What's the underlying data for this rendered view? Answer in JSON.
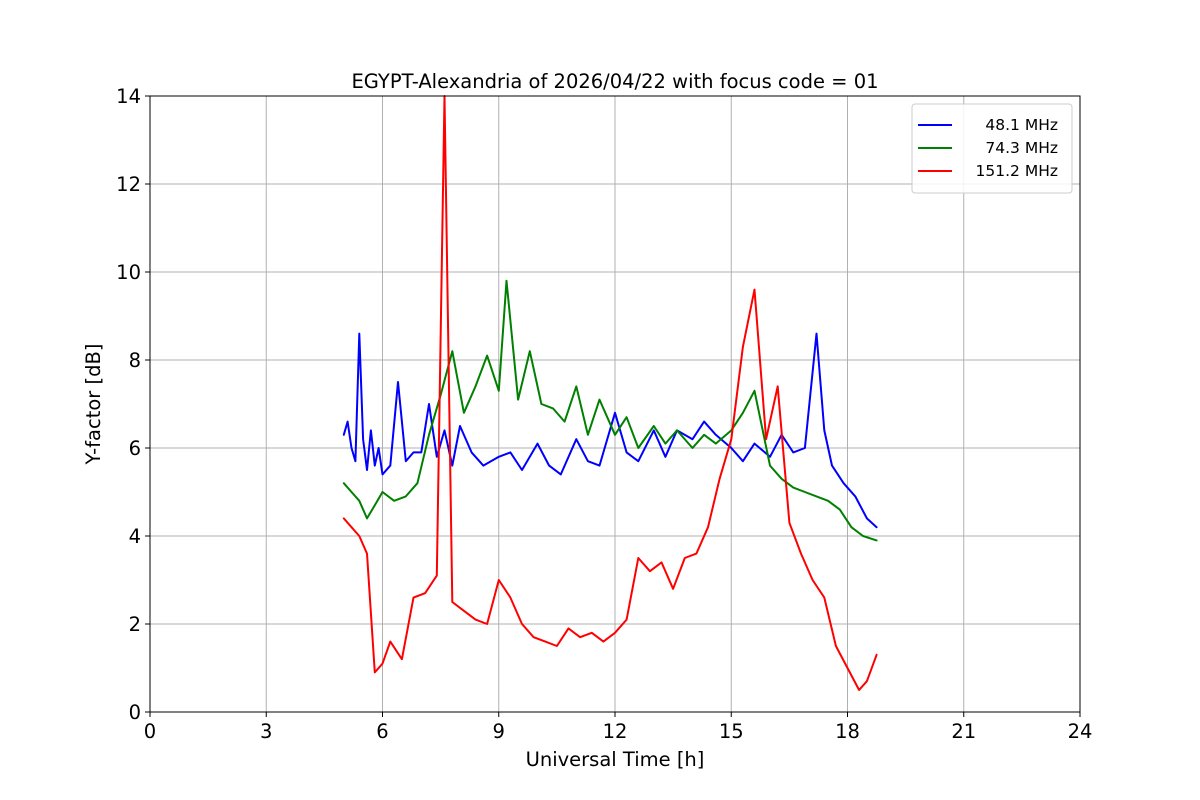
{
  "chart_data": {
    "type": "line",
    "title": "EGYPT-Alexandria of 2026/04/22 with focus code = 01",
    "xlabel": "Universal Time [h]",
    "ylabel": "Y-factor [dB]",
    "xlim": [
      0,
      24
    ],
    "ylim": [
      0,
      14
    ],
    "xticks": [
      0,
      3,
      6,
      9,
      12,
      15,
      18,
      21,
      24
    ],
    "yticks": [
      0,
      2,
      4,
      6,
      8,
      10,
      12,
      14
    ],
    "grid": true,
    "legend_position": "top-right",
    "series": [
      {
        "name": "48.1 MHz",
        "color": "#0000ff",
        "x": [
          5.0,
          5.1,
          5.2,
          5.3,
          5.4,
          5.5,
          5.6,
          5.7,
          5.8,
          5.9,
          6.0,
          6.2,
          6.4,
          6.6,
          6.8,
          7.0,
          7.2,
          7.4,
          7.6,
          7.8,
          8.0,
          8.3,
          8.6,
          9.0,
          9.3,
          9.6,
          10.0,
          10.3,
          10.6,
          11.0,
          11.3,
          11.6,
          12.0,
          12.3,
          12.6,
          13.0,
          13.3,
          13.6,
          14.0,
          14.3,
          14.6,
          15.0,
          15.3,
          15.6,
          16.0,
          16.3,
          16.6,
          16.9,
          17.2,
          17.4,
          17.6,
          17.9,
          18.2,
          18.5,
          18.75
        ],
        "values": [
          6.3,
          6.6,
          6.0,
          5.7,
          8.6,
          6.2,
          5.5,
          6.4,
          5.6,
          6.0,
          5.4,
          5.6,
          7.5,
          5.7,
          5.9,
          5.9,
          7.0,
          5.8,
          6.4,
          5.6,
          6.5,
          5.9,
          5.6,
          5.8,
          5.9,
          5.5,
          6.1,
          5.6,
          5.4,
          6.2,
          5.7,
          5.6,
          6.8,
          5.9,
          5.7,
          6.4,
          5.8,
          6.4,
          6.2,
          6.6,
          6.3,
          6.0,
          5.7,
          6.1,
          5.8,
          6.3,
          5.9,
          6.0,
          8.6,
          6.4,
          5.6,
          5.2,
          4.9,
          4.4,
          4.2
        ]
      },
      {
        "name": "74.3 MHz",
        "color": "#008000",
        "x": [
          5.0,
          5.2,
          5.4,
          5.6,
          5.8,
          6.0,
          6.3,
          6.6,
          6.9,
          7.2,
          7.5,
          7.8,
          8.1,
          8.4,
          8.7,
          9.0,
          9.2,
          9.5,
          9.8,
          10.1,
          10.4,
          10.7,
          11.0,
          11.3,
          11.6,
          12.0,
          12.3,
          12.6,
          13.0,
          13.3,
          13.6,
          14.0,
          14.3,
          14.6,
          15.0,
          15.3,
          15.6,
          16.0,
          16.3,
          16.6,
          16.9,
          17.2,
          17.5,
          17.8,
          18.1,
          18.4,
          18.75
        ],
        "values": [
          5.2,
          5.0,
          4.8,
          4.4,
          4.7,
          5.0,
          4.8,
          4.9,
          5.2,
          6.3,
          7.2,
          8.2,
          6.8,
          7.4,
          8.1,
          7.3,
          9.8,
          7.1,
          8.2,
          7.0,
          6.9,
          6.6,
          7.4,
          6.3,
          7.1,
          6.3,
          6.7,
          6.0,
          6.5,
          6.1,
          6.4,
          6.0,
          6.3,
          6.1,
          6.4,
          6.8,
          7.3,
          5.6,
          5.3,
          5.1,
          5.0,
          4.9,
          4.8,
          4.6,
          4.2,
          4.0,
          3.9
        ]
      },
      {
        "name": "151.2 MHz",
        "color": "#ff0000",
        "x": [
          5.0,
          5.2,
          5.4,
          5.6,
          5.8,
          6.0,
          6.2,
          6.5,
          6.8,
          7.1,
          7.4,
          7.6,
          7.8,
          8.1,
          8.4,
          8.7,
          9.0,
          9.3,
          9.6,
          9.9,
          10.2,
          10.5,
          10.8,
          11.1,
          11.4,
          11.7,
          12.0,
          12.3,
          12.6,
          12.9,
          13.2,
          13.5,
          13.8,
          14.1,
          14.4,
          14.7,
          15.0,
          15.3,
          15.6,
          15.9,
          16.2,
          16.5,
          16.8,
          17.1,
          17.4,
          17.7,
          18.0,
          18.3,
          18.5,
          18.75
        ],
        "values": [
          4.4,
          4.2,
          4.0,
          3.6,
          0.9,
          1.1,
          1.6,
          1.2,
          2.6,
          2.7,
          3.1,
          14.0,
          2.5,
          2.3,
          2.1,
          2.0,
          3.0,
          2.6,
          2.0,
          1.7,
          1.6,
          1.5,
          1.9,
          1.7,
          1.8,
          1.6,
          1.8,
          2.1,
          3.5,
          3.2,
          3.4,
          2.8,
          3.5,
          3.6,
          4.2,
          5.3,
          6.2,
          8.3,
          9.6,
          6.2,
          7.4,
          4.3,
          3.6,
          3.0,
          2.6,
          1.5,
          1.0,
          0.5,
          0.7,
          1.3
        ]
      }
    ]
  }
}
